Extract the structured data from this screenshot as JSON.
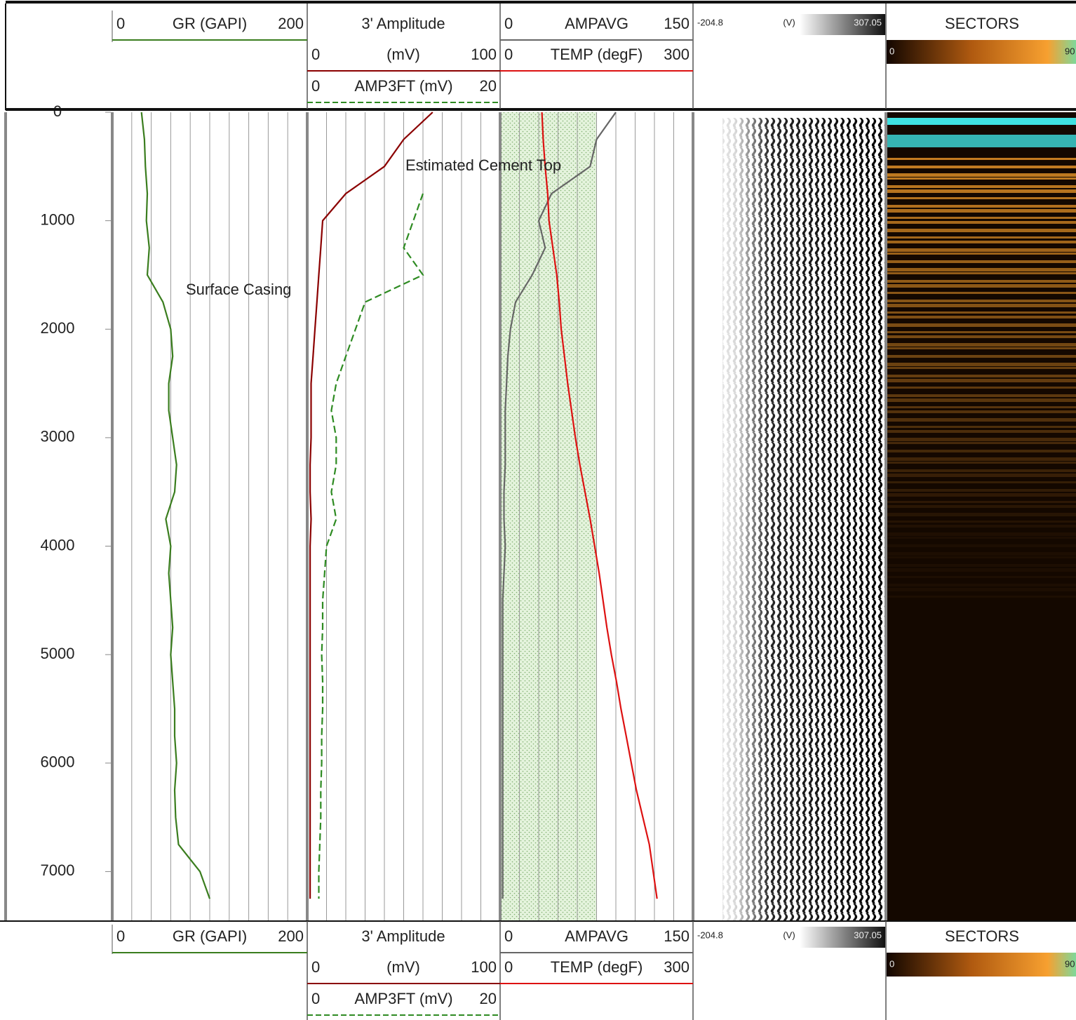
{
  "chart_data": {
    "type": "well-log",
    "ylim": [
      0,
      7450
    ],
    "yticks": [
      0,
      1000,
      2000,
      3000,
      4000,
      5000,
      6000,
      7000
    ],
    "depths": [
      0,
      250,
      500,
      750,
      1000,
      1250,
      1500,
      1750,
      2000,
      2250,
      2500,
      2750,
      3000,
      3250,
      3500,
      3750,
      4000,
      4250,
      4500,
      4750,
      5000,
      5250,
      5500,
      5750,
      6000,
      6250,
      6500,
      6750,
      7000,
      7250
    ],
    "series": [
      {
        "name": "GR (GAPI)",
        "color": "#3a7d1e",
        "xlim": [
          0,
          200
        ],
        "dash": false,
        "values": [
          30,
          33,
          34,
          36,
          35,
          38,
          36,
          52,
          60,
          62,
          58,
          58,
          62,
          66,
          64,
          55,
          60,
          58,
          60,
          62,
          60,
          62,
          64,
          64,
          66,
          64,
          65,
          68,
          90,
          100
        ]
      },
      {
        "name": "3' Amplitude",
        "unit": "(mV)",
        "color": "#8b0000",
        "xlim": [
          0,
          100
        ],
        "dash": false,
        "values": [
          65,
          50,
          40,
          20,
          8,
          7,
          6,
          5,
          4,
          3,
          2,
          2,
          2,
          1.5,
          1.5,
          2,
          1.5,
          1.5,
          1.5,
          1.5,
          1.5,
          1.5,
          1.5,
          1.5,
          1.5,
          1.5,
          1.5,
          1.5,
          1.5,
          1.5
        ]
      },
      {
        "name": "AMP3FT (mV)",
        "color": "#2e8b22",
        "xlim": [
          0,
          20
        ],
        "dash": true,
        "values": [
          null,
          null,
          null,
          12,
          11,
          10,
          12,
          6,
          5,
          4,
          3,
          2.5,
          3,
          3,
          2.5,
          3,
          2,
          1.8,
          1.6,
          1.6,
          1.5,
          1.6,
          1.6,
          1.5,
          1.5,
          1.4,
          1.4,
          1.3,
          1.2,
          1.2
        ]
      },
      {
        "name": "AMPAVG",
        "color": "#666666",
        "xlim": [
          0,
          150
        ],
        "dash": false,
        "values": [
          90,
          75,
          70,
          40,
          30,
          35,
          25,
          12,
          8,
          6,
          5,
          4,
          4,
          4,
          3,
          3,
          4,
          3,
          2,
          2,
          2,
          2,
          2,
          2,
          2,
          2,
          2,
          2,
          2,
          2
        ]
      },
      {
        "name": "TEMP (degF)",
        "color": "#dd1111",
        "xlim": [
          0,
          300
        ],
        "dash": false,
        "values": [
          65,
          67,
          70,
          74,
          76,
          82,
          88,
          92,
          95,
          100,
          105,
          111,
          117,
          124,
          132,
          140,
          147,
          154,
          160,
          166,
          173,
          181,
          188,
          196,
          204,
          212,
          222,
          232,
          238,
          244
        ]
      }
    ],
    "vdl": {
      "name": "(V)",
      "range": [
        -204.8,
        307.05
      ]
    },
    "sectors": {
      "name": "SECTORS",
      "range": [
        0,
        90
      ]
    },
    "annotations": [
      "Surface Casing",
      "Estimated Cement Top"
    ]
  }
}
